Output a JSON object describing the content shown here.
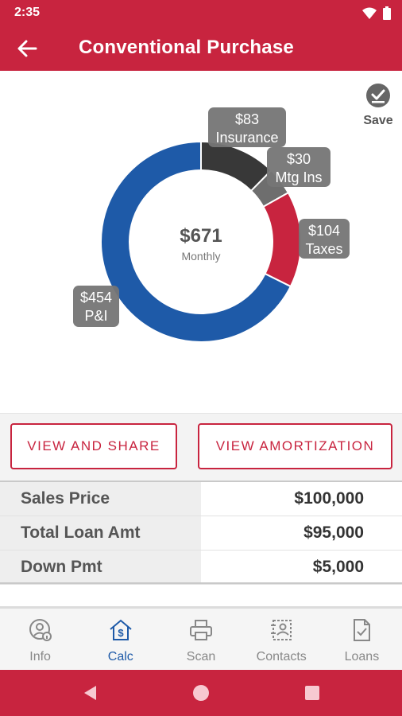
{
  "status": {
    "time": "2:35"
  },
  "header": {
    "title": "Conventional Purchase"
  },
  "save": {
    "label": "Save"
  },
  "chart_data": {
    "type": "pie",
    "center_value": "$671",
    "center_label": "Monthly",
    "total": 671,
    "slices": [
      {
        "label": "Insurance",
        "value": 83,
        "display": "$83",
        "color": "#383838"
      },
      {
        "label": "Mtg Ins",
        "value": 30,
        "display": "$30",
        "color": "#6e6e6e"
      },
      {
        "label": "Taxes",
        "value": 104,
        "display": "$104",
        "color": "#c8243f"
      },
      {
        "label": "P&I",
        "value": 454,
        "display": "$454",
        "color": "#1e5aa8"
      }
    ]
  },
  "actions": {
    "view_share": "VIEW AND SHARE",
    "view_amortization": "VIEW AMORTIZATION"
  },
  "summary": {
    "rows": [
      {
        "label": "Sales Price",
        "value": "$100,000"
      },
      {
        "label": "Total Loan Amt",
        "value": "$95,000"
      },
      {
        "label": "Down Pmt",
        "value": "$5,000"
      }
    ]
  },
  "nav": {
    "items": [
      {
        "label": "Info",
        "icon": "user-info-icon"
      },
      {
        "label": "Calc",
        "icon": "home-dollar-icon",
        "active": true
      },
      {
        "label": "Scan",
        "icon": "printer-icon"
      },
      {
        "label": "Contacts",
        "icon": "contacts-icon"
      },
      {
        "label": "Loans",
        "icon": "document-check-icon"
      }
    ]
  },
  "colors": {
    "brand": "#c8243f",
    "accent": "#1e5aa8"
  }
}
